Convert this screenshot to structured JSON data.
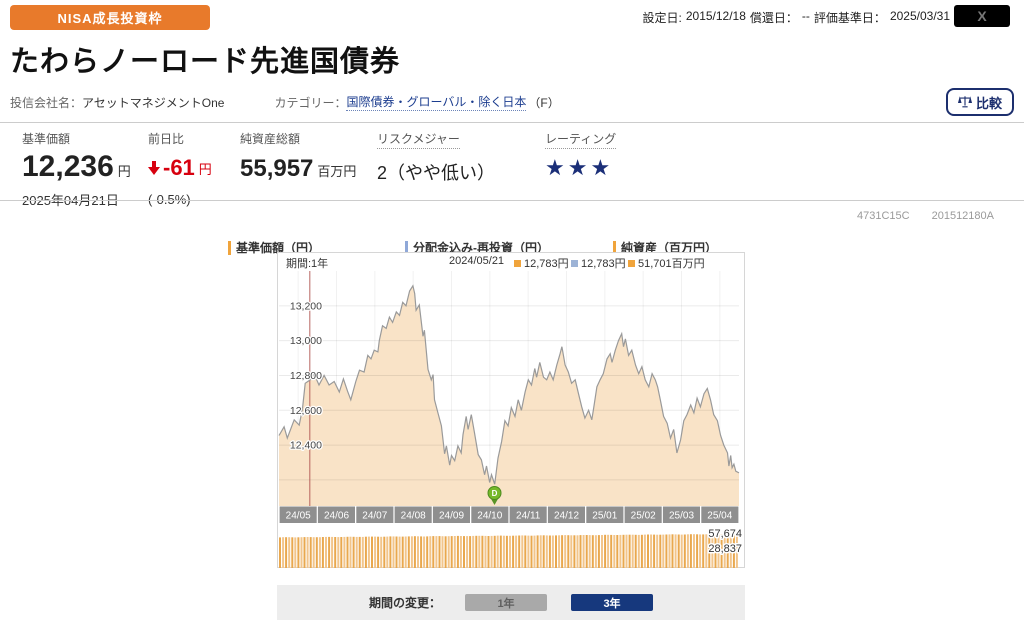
{
  "header": {
    "badge": "NISA成長投資枠",
    "meta": {
      "inception_label": "設定日:",
      "inception": "2015/12/18",
      "redemption_label": "償還日：",
      "redemption": "--",
      "valuation_label": "評価基準日：",
      "valuation": "2025/03/31"
    },
    "x_share": "X",
    "title": "たわらノーロード先進国債券",
    "company_label": "投信会社名：",
    "company": "アセットマネジメントOne",
    "category_label": "カテゴリー：",
    "category": "国際債券・グローバル・除く日本",
    "category_suffix": "（F）",
    "compare": "比較"
  },
  "summary": {
    "nav": {
      "label": "基準価額",
      "value": "12,236",
      "unit": "円",
      "date": "2025年04月21日"
    },
    "change": {
      "label": "前日比",
      "value": "-61",
      "unit": "円",
      "pct": "(-0.5%)"
    },
    "assets": {
      "label": "純資産総額",
      "value": "55,957",
      "unit": "百万円"
    },
    "risk": {
      "label": "リスクメジャー",
      "value": "2（やや低い）"
    },
    "rating": {
      "label": "レーティング",
      "stars": "★★★"
    }
  },
  "codes": {
    "fund_code": "4731C15C",
    "isin_code": "201512180A"
  },
  "chart": {
    "legend": [
      {
        "label": "基準価額（円）",
        "color": "#f0a43c"
      },
      {
        "label": "分配金込み-再投資（円）",
        "color": "#8fa8d8"
      },
      {
        "label": "純資産（百万円）",
        "color": "#f0a43c"
      }
    ],
    "period_label": "期間:1年",
    "tooltip": {
      "date": "2024/05/21",
      "nav": "12,783円",
      "reinvest": "12,783円",
      "assets": "51,701百万円",
      "colors": [
        "#f0a43c",
        "#9db3d6",
        "#f0a43c"
      ]
    }
  },
  "period_bar": {
    "label": "期間の変更：",
    "button_1y": "1年",
    "button_3y": "3年"
  },
  "chart_data": {
    "type": "line",
    "y_axis": {
      "range": [
        12050,
        13400
      ],
      "ticks": [
        {
          "v": 13200,
          "label": "13,200"
        },
        {
          "v": 13000,
          "label": "13,000"
        },
        {
          "v": 12800,
          "label": "12,800"
        },
        {
          "v": 12600,
          "label": "12,600"
        },
        {
          "v": 12400,
          "label": "12,400"
        }
      ],
      "grid_extra": [
        12200
      ]
    },
    "x_axis": {
      "ticks": [
        "24/05",
        "24/06",
        "24/07",
        "24/08",
        "24/09",
        "24/10",
        "24/11",
        "24/12",
        "25/01",
        "25/02",
        "25/03",
        "25/04"
      ]
    },
    "period_line_frac": 0.067,
    "event_marker": {
      "label": "D",
      "x_frac": 0.4685,
      "color": "#76b82a"
    },
    "series": [
      {
        "name": "基準価額（円）",
        "kind": "area-line",
        "fill": "#f9e3c7",
        "stroke": "#9a9a9a",
        "points": [
          [
            0.0,
            12455
          ],
          [
            0.011,
            12505
          ],
          [
            0.018,
            12440
          ],
          [
            0.033,
            12545
          ],
          [
            0.044,
            12515
          ],
          [
            0.051,
            12610
          ],
          [
            0.057,
            12755
          ],
          [
            0.068,
            12775
          ],
          [
            0.076,
            12810
          ],
          [
            0.087,
            12745
          ],
          [
            0.098,
            12800
          ],
          [
            0.109,
            12745
          ],
          [
            0.12,
            12765
          ],
          [
            0.131,
            12705
          ],
          [
            0.14,
            12780
          ],
          [
            0.149,
            12710
          ],
          [
            0.156,
            12660
          ],
          [
            0.167,
            12765
          ],
          [
            0.175,
            12830
          ],
          [
            0.185,
            12820
          ],
          [
            0.193,
            12915
          ],
          [
            0.2,
            12895
          ],
          [
            0.207,
            12945
          ],
          [
            0.215,
            12935
          ],
          [
            0.218,
            13000
          ],
          [
            0.225,
            13085
          ],
          [
            0.233,
            13070
          ],
          [
            0.24,
            13135
          ],
          [
            0.247,
            13105
          ],
          [
            0.255,
            13165
          ],
          [
            0.262,
            13145
          ],
          [
            0.269,
            13220
          ],
          [
            0.276,
            13200
          ],
          [
            0.284,
            13285
          ],
          [
            0.291,
            13315
          ],
          [
            0.295,
            13270
          ],
          [
            0.298,
            13175
          ],
          [
            0.305,
            13205
          ],
          [
            0.313,
            13025
          ],
          [
            0.316,
            13060
          ],
          [
            0.324,
            12835
          ],
          [
            0.331,
            12775
          ],
          [
            0.335,
            12805
          ],
          [
            0.338,
            12660
          ],
          [
            0.345,
            12590
          ],
          [
            0.353,
            12510
          ],
          [
            0.36,
            12350
          ],
          [
            0.364,
            12395
          ],
          [
            0.371,
            12285
          ],
          [
            0.375,
            12340
          ],
          [
            0.382,
            12310
          ],
          [
            0.389,
            12395
          ],
          [
            0.396,
            12355
          ],
          [
            0.4,
            12460
          ],
          [
            0.407,
            12565
          ],
          [
            0.411,
            12490
          ],
          [
            0.418,
            12575
          ],
          [
            0.425,
            12470
          ],
          [
            0.433,
            12345
          ],
          [
            0.44,
            12315
          ],
          [
            0.447,
            12230
          ],
          [
            0.451,
            12280
          ],
          [
            0.458,
            12185
          ],
          [
            0.462,
            12230
          ],
          [
            0.469,
            12175
          ],
          [
            0.476,
            12325
          ],
          [
            0.484,
            12420
          ],
          [
            0.491,
            12540
          ],
          [
            0.498,
            12510
          ],
          [
            0.505,
            12615
          ],
          [
            0.513,
            12565
          ],
          [
            0.52,
            12660
          ],
          [
            0.527,
            12600
          ],
          [
            0.535,
            12705
          ],
          [
            0.542,
            12775
          ],
          [
            0.549,
            12745
          ],
          [
            0.556,
            12840
          ],
          [
            0.56,
            12790
          ],
          [
            0.567,
            12875
          ],
          [
            0.575,
            12790
          ],
          [
            0.582,
            12775
          ],
          [
            0.589,
            12820
          ],
          [
            0.596,
            12775
          ],
          [
            0.604,
            12860
          ],
          [
            0.611,
            12925
          ],
          [
            0.615,
            12965
          ],
          [
            0.622,
            12860
          ],
          [
            0.629,
            12820
          ],
          [
            0.636,
            12755
          ],
          [
            0.644,
            12775
          ],
          [
            0.651,
            12695
          ],
          [
            0.658,
            12620
          ],
          [
            0.665,
            12555
          ],
          [
            0.673,
            12600
          ],
          [
            0.68,
            12545
          ],
          [
            0.684,
            12610
          ],
          [
            0.691,
            12735
          ],
          [
            0.698,
            12775
          ],
          [
            0.705,
            12810
          ],
          [
            0.713,
            12895
          ],
          [
            0.72,
            12925
          ],
          [
            0.724,
            12875
          ],
          [
            0.731,
            12945
          ],
          [
            0.738,
            13000
          ],
          [
            0.745,
            13040
          ],
          [
            0.749,
            12965
          ],
          [
            0.753,
            13010
          ],
          [
            0.76,
            12915
          ],
          [
            0.767,
            12945
          ],
          [
            0.775,
            12860
          ],
          [
            0.782,
            12810
          ],
          [
            0.789,
            12850
          ],
          [
            0.796,
            12775
          ],
          [
            0.804,
            12735
          ],
          [
            0.811,
            12810
          ],
          [
            0.818,
            12775
          ],
          [
            0.823,
            12735
          ],
          [
            0.829,
            12660
          ],
          [
            0.836,
            12565
          ],
          [
            0.844,
            12525
          ],
          [
            0.851,
            12440
          ],
          [
            0.858,
            12490
          ],
          [
            0.865,
            12355
          ],
          [
            0.873,
            12430
          ],
          [
            0.88,
            12540
          ],
          [
            0.887,
            12575
          ],
          [
            0.895,
            12630
          ],
          [
            0.902,
            12585
          ],
          [
            0.909,
            12670
          ],
          [
            0.916,
            12620
          ],
          [
            0.924,
            12695
          ],
          [
            0.931,
            12725
          ],
          [
            0.938,
            12660
          ],
          [
            0.945,
            12575
          ],
          [
            0.953,
            12540
          ],
          [
            0.96,
            12455
          ],
          [
            0.967,
            12400
          ],
          [
            0.975,
            12355
          ],
          [
            0.978,
            12280
          ],
          [
            0.982,
            12340
          ],
          [
            0.985,
            12270
          ],
          [
            0.989,
            12290
          ],
          [
            0.993,
            12250
          ],
          [
            1.0,
            12240
          ]
        ]
      },
      {
        "name": "純資産（百万円）",
        "kind": "bar",
        "start": 51200,
        "end": 57674,
        "axis_labels": [
          "57,674",
          "28,837"
        ],
        "axis_values": [
          57674,
          28837
        ],
        "colors": [
          "#e9a84e",
          "#f2c58b"
        ]
      }
    ]
  }
}
